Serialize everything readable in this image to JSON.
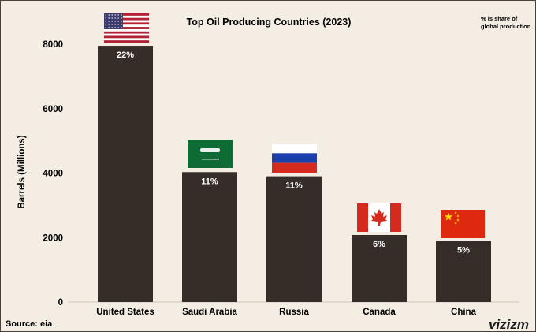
{
  "chart_data": {
    "type": "bar",
    "title": "Top Oil Producing Countries (2023)",
    "note": "% is share of global production",
    "xlabel": "",
    "ylabel": "Barrels (Millions)",
    "ylim": [
      0,
      8000
    ],
    "yticks": [
      0,
      2000,
      4000,
      6000,
      8000
    ],
    "grid": false,
    "categories": [
      "United States",
      "Saudi Arabia",
      "Russia",
      "Canada",
      "China"
    ],
    "values": [
      7950,
      4030,
      3900,
      2080,
      1900
    ],
    "data_labels": [
      "22%",
      "11%",
      "11%",
      "6%",
      "5%"
    ],
    "flags": [
      "us-flag-icon",
      "saudi-arabia-flag-icon",
      "russia-flag-icon",
      "canada-flag-icon",
      "china-flag-icon"
    ],
    "colors": {
      "bar": "#362d28",
      "label": "#ffffff",
      "background": "#f3ede3"
    }
  },
  "footer": {
    "source": "Source: eia",
    "brand": "vizizm"
  }
}
